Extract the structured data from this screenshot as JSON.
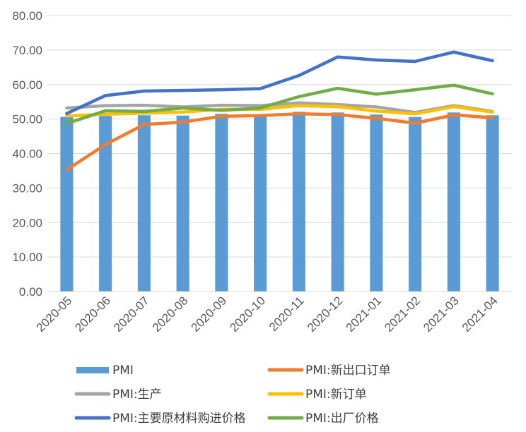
{
  "chart_data": {
    "type": "bar",
    "title": "",
    "xlabel": "",
    "ylabel": "",
    "ylim": [
      0,
      80
    ],
    "yticks": [
      "0.00",
      "10.00",
      "20.00",
      "30.00",
      "40.00",
      "50.00",
      "60.00",
      "70.00",
      "80.00"
    ],
    "grid": true,
    "legend_position": "bottom",
    "categories": [
      "2020-05",
      "2020-06",
      "2020-07",
      "2020-08",
      "2020-09",
      "2020-10",
      "2020-11",
      "2020-12",
      "2021-01",
      "2021-02",
      "2021-03",
      "2021-04"
    ],
    "series": [
      {
        "name": "PMI",
        "kind": "bar",
        "color": "#5B9BD5",
        "values": [
          50.6,
          50.9,
          51.1,
          51.0,
          51.5,
          51.4,
          52.1,
          51.9,
          51.3,
          50.6,
          51.9,
          51.1
        ]
      },
      {
        "name": "PMI:新出口订单",
        "kind": "line",
        "color": "#ED7D31",
        "values": [
          35.3,
          42.6,
          48.4,
          49.1,
          50.8,
          51.0,
          51.5,
          51.3,
          50.2,
          48.8,
          51.2,
          50.4
        ]
      },
      {
        "name": "PMI:生产",
        "kind": "line",
        "color": "#A5A5A5",
        "values": [
          53.2,
          53.9,
          54.0,
          53.5,
          54.0,
          53.9,
          54.7,
          54.2,
          53.5,
          51.9,
          53.9,
          52.2
        ]
      },
      {
        "name": "PMI:新订单",
        "kind": "line",
        "color": "#FFC000",
        "values": [
          50.9,
          51.4,
          51.7,
          52.0,
          52.8,
          52.8,
          53.9,
          53.6,
          52.3,
          51.5,
          53.6,
          52.0
        ]
      },
      {
        "name": "PMI:主要原材料购进价格",
        "kind": "line",
        "color": "#4472C4",
        "values": [
          51.6,
          56.8,
          58.1,
          58.3,
          58.5,
          58.8,
          62.6,
          68.0,
          67.1,
          66.7,
          69.4,
          66.9
        ]
      },
      {
        "name": "PMI:出厂价格",
        "kind": "line",
        "color": "#70AD47",
        "values": [
          48.7,
          52.4,
          52.2,
          53.2,
          52.5,
          53.2,
          56.5,
          58.9,
          57.2,
          58.5,
          59.8,
          57.3
        ]
      }
    ]
  }
}
